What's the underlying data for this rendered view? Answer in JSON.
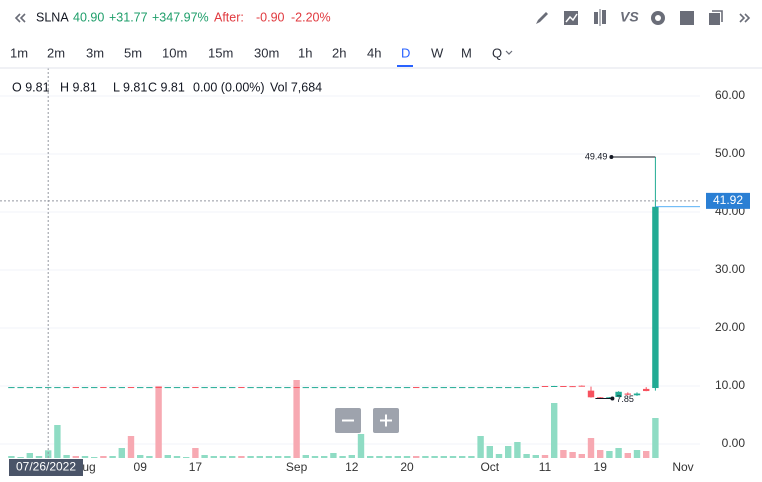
{
  "header": {
    "symbol": "SLNA",
    "last": "40.90",
    "change": "+31.77",
    "change_pct": "+347.97%",
    "after_label": "After:",
    "after_change": "-0.90",
    "after_pct": "-2.20%",
    "compare": "VS"
  },
  "intervals": {
    "items": [
      "1m",
      "2m",
      "3m",
      "5m",
      "10m",
      "15m",
      "30m",
      "1h",
      "2h",
      "4h",
      "D",
      "W",
      "M",
      "Q"
    ],
    "active": 10
  },
  "ohlc_strip": [
    "O 9.81",
    "H 9.81",
    "L 9.81",
    "C 9.81",
    "0.00 (0.00%)",
    "Vol 7,684"
  ],
  "chart_data": {
    "type": "candlestick",
    "up_color": "#22ab94",
    "down_color": "#f7525f",
    "up_volume_color": "#8fdcc4",
    "down_volume_color": "#f7a9b2",
    "categories": [
      null,
      null,
      null,
      null,
      null,
      null,
      null,
      null,
      "Aug",
      null,
      null,
      null,
      null,
      null,
      "09",
      null,
      null,
      null,
      null,
      null,
      "17",
      null,
      null,
      null,
      null,
      null,
      null,
      null,
      null,
      null,
      null,
      "Sep",
      null,
      null,
      null,
      null,
      null,
      "12",
      null,
      null,
      null,
      null,
      null,
      "20",
      null,
      null,
      null,
      null,
      null,
      null,
      null,
      null,
      "Oct",
      null,
      null,
      null,
      null,
      null,
      "11",
      null,
      null,
      null,
      null,
      null,
      "19",
      null,
      null,
      null,
      null,
      null,
      null,
      null,
      null,
      "Nov"
    ],
    "open": [
      9.8,
      9.8,
      9.8,
      9.8,
      9.81,
      9.8,
      9.8,
      9.82,
      9.8,
      9.8,
      9.82,
      9.8,
      9.8,
      9.82,
      9.8,
      9.8,
      9.82,
      9.8,
      9.8,
      9.8,
      9.82,
      9.8,
      9.8,
      9.8,
      9.8,
      9.82,
      9.8,
      9.8,
      9.8,
      9.8,
      9.8,
      9.82,
      9.8,
      9.8,
      9.8,
      9.8,
      9.8,
      9.8,
      9.8,
      9.8,
      9.8,
      9.8,
      9.8,
      9.8,
      9.82,
      9.8,
      9.8,
      9.8,
      9.8,
      9.8,
      9.8,
      9.8,
      9.8,
      9.8,
      9.8,
      9.8,
      9.8,
      9.8,
      10.0,
      9.97,
      10.0,
      9.98,
      10.05,
      9.2,
      8.05,
      8.0,
      8.1,
      8.7,
      8.4,
      9.5,
      9.65,
      null,
      null,
      null
    ],
    "high": [
      9.82,
      9.82,
      9.82,
      9.82,
      9.81,
      9.82,
      9.82,
      9.83,
      9.82,
      9.82,
      9.83,
      9.82,
      9.82,
      9.83,
      9.82,
      9.82,
      9.83,
      9.82,
      9.82,
      9.82,
      9.83,
      9.82,
      9.82,
      9.82,
      9.82,
      9.83,
      9.82,
      9.82,
      9.82,
      9.82,
      9.82,
      9.83,
      9.82,
      9.82,
      9.82,
      9.82,
      9.82,
      9.82,
      9.82,
      9.82,
      9.82,
      9.82,
      9.82,
      9.82,
      9.83,
      9.82,
      9.82,
      9.82,
      9.82,
      9.82,
      9.82,
      9.82,
      9.82,
      9.82,
      9.82,
      9.82,
      9.82,
      9.82,
      10.0,
      10.02,
      10.0,
      10.0,
      10.1,
      9.9,
      8.1,
      8.1,
      9.1,
      8.9,
      8.9,
      9.8,
      49.49,
      null,
      null,
      null
    ],
    "low": [
      9.79,
      9.79,
      9.79,
      9.79,
      9.81,
      9.79,
      9.79,
      9.8,
      9.79,
      9.79,
      9.8,
      9.79,
      9.79,
      9.8,
      9.79,
      9.79,
      9.8,
      9.79,
      9.79,
      9.79,
      9.8,
      9.79,
      9.79,
      9.79,
      9.79,
      9.8,
      9.79,
      9.79,
      9.79,
      9.79,
      9.79,
      9.8,
      9.79,
      9.79,
      9.79,
      9.79,
      9.79,
      9.79,
      9.79,
      9.79,
      9.79,
      9.79,
      9.79,
      9.79,
      9.8,
      9.79,
      9.79,
      9.79,
      9.79,
      9.79,
      9.79,
      9.79,
      9.79,
      9.79,
      9.79,
      9.79,
      9.79,
      9.79,
      9.95,
      9.96,
      9.97,
      9.95,
      9.9,
      8.0,
      7.95,
      7.85,
      8.05,
      8.4,
      8.3,
      9.1,
      9.2,
      null,
      null,
      null
    ],
    "close": [
      9.81,
      9.81,
      9.81,
      9.81,
      9.81,
      9.81,
      9.81,
      9.8,
      9.81,
      9.81,
      9.8,
      9.81,
      9.81,
      9.8,
      9.81,
      9.81,
      9.8,
      9.81,
      9.81,
      9.81,
      9.8,
      9.81,
      9.81,
      9.81,
      9.81,
      9.8,
      9.81,
      9.81,
      9.81,
      9.81,
      9.81,
      9.8,
      9.81,
      9.81,
      9.81,
      9.81,
      9.81,
      9.81,
      9.81,
      9.81,
      9.81,
      9.81,
      9.81,
      9.81,
      9.8,
      9.81,
      9.81,
      9.81,
      9.81,
      9.81,
      9.81,
      9.81,
      9.81,
      9.81,
      9.81,
      9.81,
      9.81,
      9.81,
      9.95,
      10.0,
      9.97,
      9.95,
      9.92,
      8.05,
      8.0,
      8.05,
      9.0,
      8.5,
      8.7,
      9.13,
      40.9,
      null,
      null,
      null
    ],
    "volume": [
      2000,
      1000,
      5000,
      2000,
      7684,
      33000,
      3000,
      2000,
      2000,
      1000,
      2000,
      2000,
      10000,
      22000,
      3000,
      2000,
      72000,
      3000,
      2000,
      1000,
      10000,
      3000,
      2000,
      2000,
      2000,
      2000,
      2000,
      2000,
      2000,
      2000,
      2000,
      78000,
      3000,
      2000,
      2000,
      5000,
      2000,
      3000,
      24000,
      2000,
      2000,
      2000,
      2000,
      2000,
      2000,
      2000,
      2000,
      2000,
      2000,
      2000,
      2000,
      22000,
      12000,
      4000,
      12000,
      16000,
      4000,
      3000,
      3000,
      55000,
      8000,
      6000,
      4000,
      20000,
      8000,
      7000,
      10000,
      5000,
      8000,
      7000,
      40000,
      null,
      null,
      null
    ],
    "ylim": [
      -2.76,
      64.83
    ],
    "yticks": [
      {
        "value": 0,
        "label": "0.00"
      },
      {
        "value": 10,
        "label": "10.00"
      },
      {
        "value": 20,
        "label": "20.00"
      },
      {
        "value": 30,
        "label": "30.00"
      },
      {
        "value": 40,
        "label": "40.00"
      },
      {
        "value": 50,
        "label": "50.00"
      },
      {
        "value": 60,
        "label": "60.00"
      }
    ],
    "grid": true,
    "high_marker": 70,
    "low_marker": 65,
    "crosshair": {
      "index": 4,
      "date": "07/26/2022",
      "price": 41.92
    }
  }
}
